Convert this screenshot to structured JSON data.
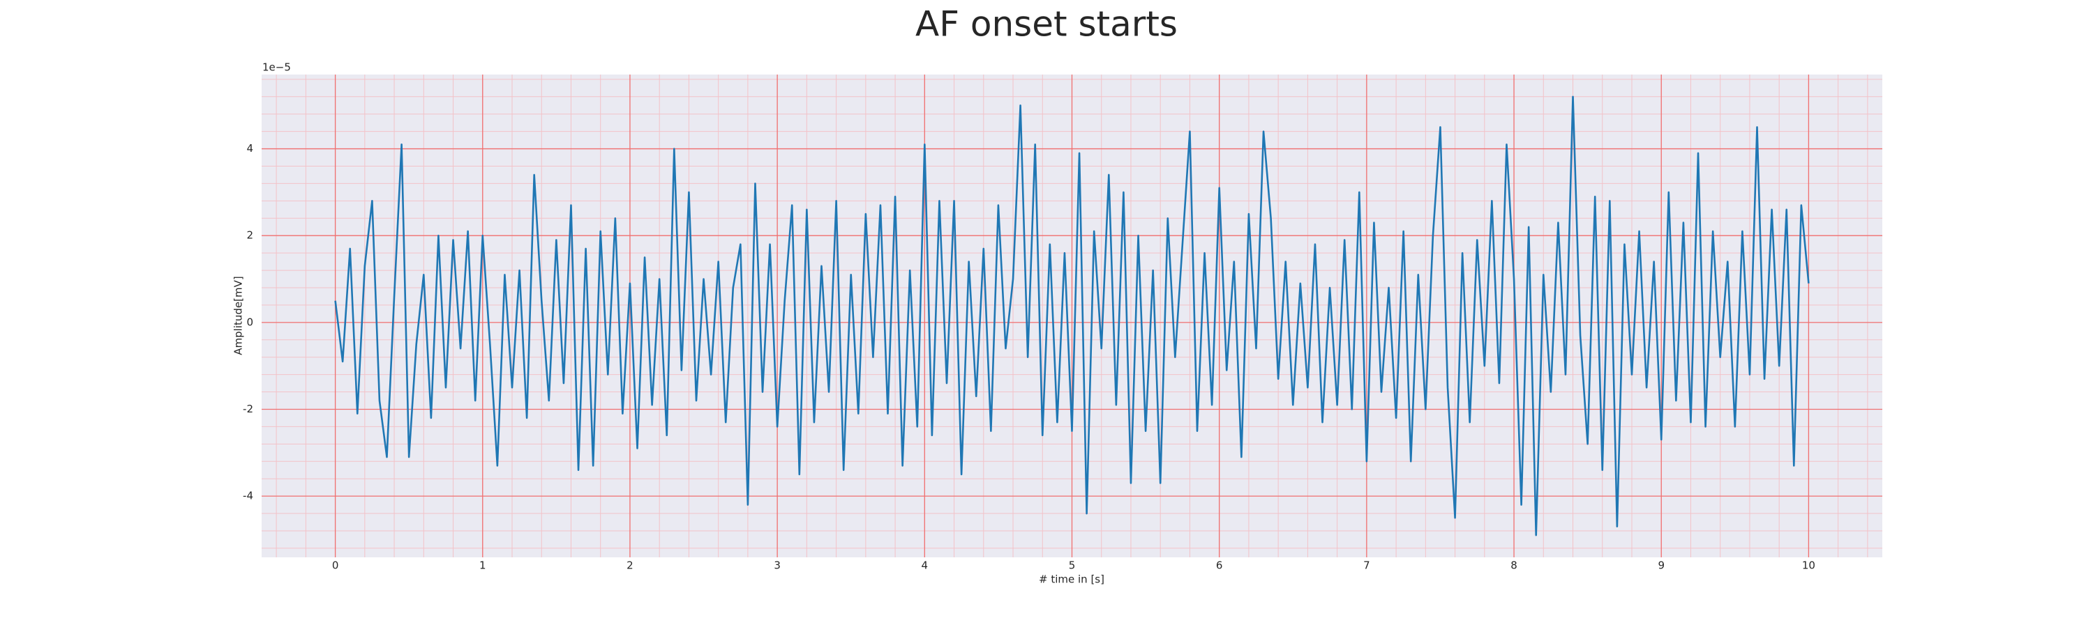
{
  "chart_data": {
    "type": "line",
    "title": "AF onset starts",
    "xlabel": "# time in [s]",
    "ylabel": "Amplitude[mV]",
    "y_offset_label": "1e−5",
    "color": "#1f77b4",
    "grid": true,
    "grid_color": "#f07070",
    "minor_grid_color": "#f3c2c8",
    "xminor": 0.2,
    "yminor": 0.4,
    "xlim": [
      -0.5,
      10.5
    ],
    "ylim": [
      -5.41,
      5.71
    ],
    "xticks": [
      0,
      1,
      2,
      3,
      4,
      5,
      6,
      7,
      8,
      9,
      10
    ],
    "yticks": [
      -4,
      -2,
      0,
      2,
      4
    ],
    "x": [
      0,
      0.05,
      0.1,
      0.15,
      0.2,
      0.25,
      0.3,
      0.35,
      0.4,
      0.45,
      0.5,
      0.55,
      0.6,
      0.65,
      0.7,
      0.75,
      0.8,
      0.85,
      0.9,
      0.95,
      1,
      1.05,
      1.1,
      1.15,
      1.2,
      1.25,
      1.3,
      1.35,
      1.4,
      1.45,
      1.5,
      1.55,
      1.6,
      1.65,
      1.7,
      1.75,
      1.8,
      1.85,
      1.9,
      1.95,
      2,
      2.05,
      2.1,
      2.15,
      2.2,
      2.25,
      2.3,
      2.35,
      2.4,
      2.45,
      2.5,
      2.55,
      2.6,
      2.65,
      2.7,
      2.75,
      2.8,
      2.85,
      2.9,
      2.95,
      3,
      3.05,
      3.1,
      3.15,
      3.2,
      3.25,
      3.3,
      3.35,
      3.4,
      3.45,
      3.5,
      3.55,
      3.6,
      3.65,
      3.7,
      3.75,
      3.8,
      3.85,
      3.9,
      3.95,
      4,
      4.05,
      4.1,
      4.15,
      4.2,
      4.25,
      4.3,
      4.35,
      4.4,
      4.45,
      4.5,
      4.55,
      4.6,
      4.65,
      4.7,
      4.75,
      4.8,
      4.85,
      4.9,
      4.95,
      5,
      5.05,
      5.1,
      5.15,
      5.2,
      5.25,
      5.3,
      5.35,
      5.4,
      5.45,
      5.5,
      5.55,
      5.6,
      5.65,
      5.7,
      5.75,
      5.8,
      5.85,
      5.9,
      5.95,
      6,
      6.05,
      6.1,
      6.15,
      6.2,
      6.25,
      6.3,
      6.35,
      6.4,
      6.45,
      6.5,
      6.55,
      6.6,
      6.65,
      6.7,
      6.75,
      6.8,
      6.85,
      6.9,
      6.95,
      7,
      7.05,
      7.1,
      7.15,
      7.2,
      7.25,
      7.3,
      7.35,
      7.4,
      7.45,
      7.5,
      7.55,
      7.6,
      7.65,
      7.7,
      7.75,
      7.8,
      7.85,
      7.9,
      7.95,
      8,
      8.05,
      8.1,
      8.15,
      8.2,
      8.25,
      8.3,
      8.35,
      8.4,
      8.45,
      8.5,
      8.55,
      8.6,
      8.65,
      8.7,
      8.75,
      8.8,
      8.85,
      8.9,
      8.95,
      9,
      9.05,
      9.1,
      9.15,
      9.2,
      9.25,
      9.3,
      9.35,
      9.4,
      9.45,
      9.5,
      9.55,
      9.6,
      9.65,
      9.7,
      9.75,
      9.8,
      9.85,
      9.9,
      9.95,
      10
    ],
    "values": [
      0.5,
      -0.9,
      1.7,
      -2.1,
      1.3,
      2.8,
      -1.8,
      -3.1,
      0.6,
      4.1,
      -3.1,
      -0.5,
      1.1,
      -2.2,
      2.0,
      -1.5,
      1.9,
      -0.6,
      2.1,
      -1.8,
      2.0,
      -0.5,
      -3.3,
      1.1,
      -1.5,
      1.2,
      -2.2,
      3.4,
      0.5,
      -1.8,
      1.9,
      -1.4,
      2.7,
      -3.4,
      1.7,
      -3.3,
      2.1,
      -1.2,
      2.4,
      -2.1,
      0.9,
      -2.9,
      1.5,
      -1.9,
      1.0,
      -2.6,
      4.0,
      -1.1,
      3.0,
      -1.8,
      1.0,
      -1.2,
      1.4,
      -2.3,
      0.8,
      1.8,
      -4.2,
      3.2,
      -1.6,
      1.8,
      -2.4,
      0.5,
      2.7,
      -3.5,
      2.6,
      -2.3,
      1.3,
      -1.6,
      2.8,
      -3.4,
      1.1,
      -2.1,
      2.5,
      -0.8,
      2.7,
      -2.1,
      2.9,
      -3.3,
      1.2,
      -2.4,
      4.1,
      -2.6,
      2.8,
      -1.4,
      2.8,
      -3.5,
      1.4,
      -1.7,
      1.7,
      -2.5,
      2.7,
      -0.6,
      1.0,
      5.0,
      -0.8,
      4.1,
      -2.6,
      1.8,
      -2.3,
      1.6,
      -2.5,
      3.9,
      -4.4,
      2.1,
      -0.6,
      3.4,
      -1.9,
      3.0,
      -3.7,
      2.0,
      -2.5,
      1.2,
      -3.7,
      2.4,
      -0.8,
      1.8,
      4.4,
      -2.5,
      1.6,
      -1.9,
      3.1,
      -1.1,
      1.4,
      -3.1,
      2.5,
      -0.6,
      4.4,
      2.4,
      -1.3,
      1.4,
      -1.9,
      0.9,
      -1.5,
      1.8,
      -2.3,
      0.8,
      -1.9,
      1.9,
      -2.0,
      3.0,
      -3.2,
      2.3,
      -1.6,
      0.8,
      -2.2,
      2.1,
      -3.2,
      1.1,
      -2.0,
      2.0,
      4.5,
      -1.5,
      -4.5,
      1.6,
      -2.3,
      1.9,
      -1.0,
      2.8,
      -1.4,
      4.1,
      1.0,
      -4.2,
      2.2,
      -4.9,
      1.1,
      -1.6,
      2.3,
      -1.2,
      5.2,
      -0.3,
      -2.8,
      2.9,
      -3.4,
      2.8,
      -4.7,
      1.8,
      -1.2,
      2.1,
      -1.5,
      1.4,
      -2.7,
      3.0,
      -1.8,
      2.3,
      -2.3,
      3.9,
      -2.4,
      2.1,
      -0.8,
      1.4,
      -2.4,
      2.1,
      -1.2,
      4.5,
      -1.3,
      2.6,
      -1.0,
      2.6,
      -3.3,
      2.7,
      0.9
    ]
  }
}
